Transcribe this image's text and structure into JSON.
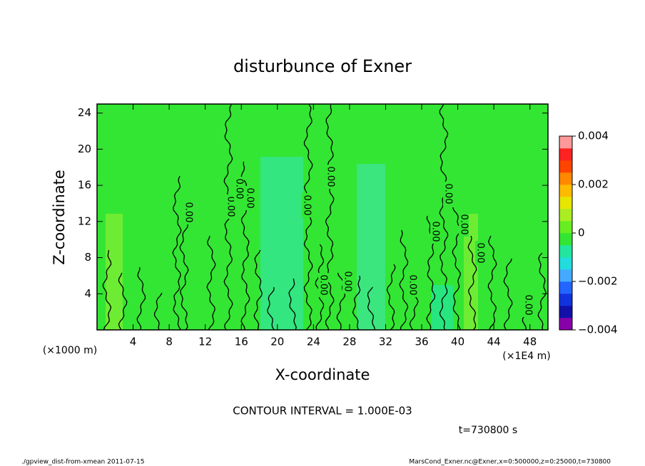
{
  "chart_data": {
    "type": "contour",
    "title": "disturbunce of Exner",
    "x_label": "X-coordinate",
    "y_label": "Z-coordinate",
    "x_unit": "(×1E4 m)",
    "y_unit": "(×1000 m)",
    "xlim": [
      0,
      50
    ],
    "xticks": [
      4,
      8,
      12,
      16,
      20,
      24,
      28,
      32,
      36,
      40,
      44,
      48
    ],
    "ylim": [
      0,
      25
    ],
    "yticks": [
      4,
      8,
      12,
      16,
      20,
      24
    ],
    "field_color": "#33e633",
    "colorbar": {
      "lim": [
        -0.004,
        0.004
      ],
      "ticks": [
        {
          "value": -0.004,
          "label": "−0.004"
        },
        {
          "value": -0.002,
          "label": "−0.002"
        },
        0,
        0.002,
        0.004
      ],
      "colors": [
        "#8800aa",
        "#1111aa",
        "#1133dd",
        "#2266ff",
        "#44aaff",
        "#22dddd",
        "#22e6a0",
        "#33e633",
        "#66ee22",
        "#aaee22",
        "#e6e600",
        "#ffbb00",
        "#ff8800",
        "#ff4400",
        "#ff2222",
        "#ff9999"
      ]
    },
    "contour_labels": [
      "0.00",
      "0.00",
      "0.00",
      "0.00",
      "0.00",
      "0.00",
      "0.00",
      "0.00",
      "0.00",
      "0.00",
      "0.00",
      "0.00",
      "0.00",
      "0.00"
    ],
    "contour_interval": "CONTOUR INTERVAL = 1.000E-03",
    "time": "t=730800 s",
    "footer_left": "./gpview_dist-from-xmean  2011-07-15",
    "footer_right": "MarsCond_Exner.nc@Exner,x=0:500000,z=0:25000,t=730800"
  }
}
